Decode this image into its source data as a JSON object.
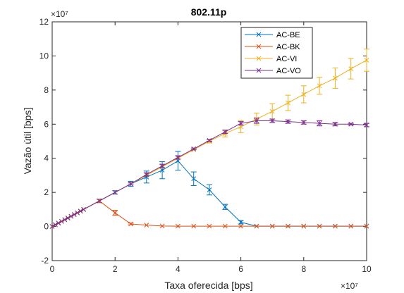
{
  "chart_data": {
    "type": "line",
    "title": "802.11p",
    "xlabel": "Taxa oferecida [bps]",
    "ylabel": "Vazão útil [bps]",
    "x_exponent": "×10⁷",
    "y_exponent": "×10⁷",
    "xlim": [
      0,
      10
    ],
    "ylim": [
      -2,
      12
    ],
    "xticks": [
      "0",
      "2",
      "4",
      "6",
      "8",
      "10"
    ],
    "yticks": [
      "-2",
      "0",
      "2",
      "4",
      "6",
      "8",
      "10",
      "12"
    ],
    "legend_position": "top-right",
    "grid": false,
    "units_note": "values in units of 1e7 bps",
    "series": [
      {
        "name": "AC-BE",
        "color": "#0072BD",
        "x": [
          0,
          0.1,
          0.2,
          0.3,
          0.4,
          0.5,
          0.6,
          0.7,
          0.8,
          0.9,
          1.0,
          1.5,
          2.0,
          2.5,
          3.0,
          3.5,
          4.0,
          4.5,
          5.0,
          5.5,
          6.0,
          6.5,
          7.0,
          7.5,
          8.0,
          8.5,
          9.0,
          9.5,
          10.0
        ],
        "y": [
          0,
          0.1,
          0.2,
          0.3,
          0.4,
          0.5,
          0.6,
          0.7,
          0.8,
          0.9,
          1.0,
          1.5,
          2.0,
          2.5,
          2.9,
          3.3,
          3.85,
          2.8,
          2.15,
          1.15,
          0.25,
          0.02,
          0.02,
          0.02,
          0.02,
          0.02,
          0.02,
          0.02,
          0.02
        ],
        "err": [
          0,
          0,
          0,
          0,
          0,
          0,
          0,
          0,
          0,
          0,
          0,
          0.1,
          0.1,
          0.15,
          0.35,
          0.5,
          0.55,
          0.4,
          0.3,
          0.15,
          0.1,
          0,
          0,
          0,
          0,
          0,
          0,
          0,
          0
        ]
      },
      {
        "name": "AC-BK",
        "color": "#D95319",
        "x": [
          0,
          0.1,
          0.2,
          0.3,
          0.4,
          0.5,
          0.6,
          0.7,
          0.8,
          0.9,
          1.0,
          1.5,
          2.0,
          2.5,
          3.0,
          3.5,
          4.0,
          4.5,
          5.0,
          5.5,
          6.0,
          6.5,
          7.0,
          7.5,
          8.0,
          8.5,
          9.0,
          9.5,
          10.0
        ],
        "y": [
          0,
          0.1,
          0.2,
          0.3,
          0.4,
          0.5,
          0.6,
          0.7,
          0.8,
          0.9,
          1.0,
          1.5,
          0.8,
          0.15,
          0.08,
          0.03,
          0.02,
          0.02,
          0.02,
          0.02,
          0.02,
          0.02,
          0.02,
          0.02,
          0.02,
          0.02,
          0.02,
          0.02,
          0.02
        ],
        "err": [
          0,
          0,
          0,
          0,
          0,
          0,
          0,
          0,
          0,
          0,
          0,
          0.1,
          0.15,
          0.05,
          0,
          0,
          0,
          0,
          0,
          0,
          0,
          0,
          0,
          0,
          0,
          0,
          0,
          0,
          0
        ]
      },
      {
        "name": "AC-VI",
        "color": "#EDB120",
        "x": [
          0,
          0.1,
          0.2,
          0.3,
          0.4,
          0.5,
          0.6,
          0.7,
          0.8,
          0.9,
          1.0,
          1.5,
          2.0,
          2.5,
          3.0,
          3.5,
          4.0,
          4.5,
          5.0,
          5.5,
          6.0,
          6.5,
          7.0,
          7.5,
          8.0,
          8.5,
          9.0,
          9.5,
          10.0
        ],
        "y": [
          0,
          0.1,
          0.2,
          0.3,
          0.4,
          0.5,
          0.6,
          0.7,
          0.8,
          0.9,
          1.0,
          1.5,
          2.0,
          2.5,
          3.0,
          3.5,
          4.0,
          4.5,
          5.0,
          5.45,
          5.85,
          6.3,
          6.75,
          7.25,
          7.75,
          8.25,
          8.7,
          9.25,
          9.75
        ],
        "err": [
          0,
          0,
          0,
          0,
          0,
          0,
          0,
          0,
          0,
          0,
          0,
          0,
          0,
          0,
          0,
          0,
          0,
          0,
          0.1,
          0.2,
          0.35,
          0.35,
          0.45,
          0.45,
          0.5,
          0.5,
          0.6,
          0.6,
          0.65
        ]
      },
      {
        "name": "AC-VO",
        "color": "#7E2F8E",
        "x": [
          0,
          0.1,
          0.2,
          0.3,
          0.4,
          0.5,
          0.6,
          0.7,
          0.8,
          0.9,
          1.0,
          1.5,
          2.0,
          2.5,
          3.0,
          3.5,
          4.0,
          4.5,
          5.0,
          5.5,
          6.0,
          6.5,
          7.0,
          7.5,
          8.0,
          8.5,
          9.0,
          9.5,
          10.0
        ],
        "y": [
          0,
          0.1,
          0.2,
          0.3,
          0.4,
          0.5,
          0.6,
          0.7,
          0.8,
          0.9,
          1.0,
          1.5,
          2.0,
          2.5,
          3.05,
          3.55,
          4.05,
          4.55,
          5.05,
          5.55,
          6.05,
          6.2,
          6.2,
          6.15,
          6.1,
          6.05,
          6.0,
          6.0,
          5.95
        ],
        "err": [
          0,
          0,
          0,
          0,
          0,
          0,
          0,
          0,
          0,
          0,
          0,
          0,
          0,
          0.05,
          0.1,
          0.1,
          0.1,
          0.05,
          0.05,
          0.1,
          0.1,
          0.15,
          0.1,
          0.1,
          0.1,
          0.15,
          0.1,
          0.05,
          0.1
        ]
      }
    ]
  }
}
